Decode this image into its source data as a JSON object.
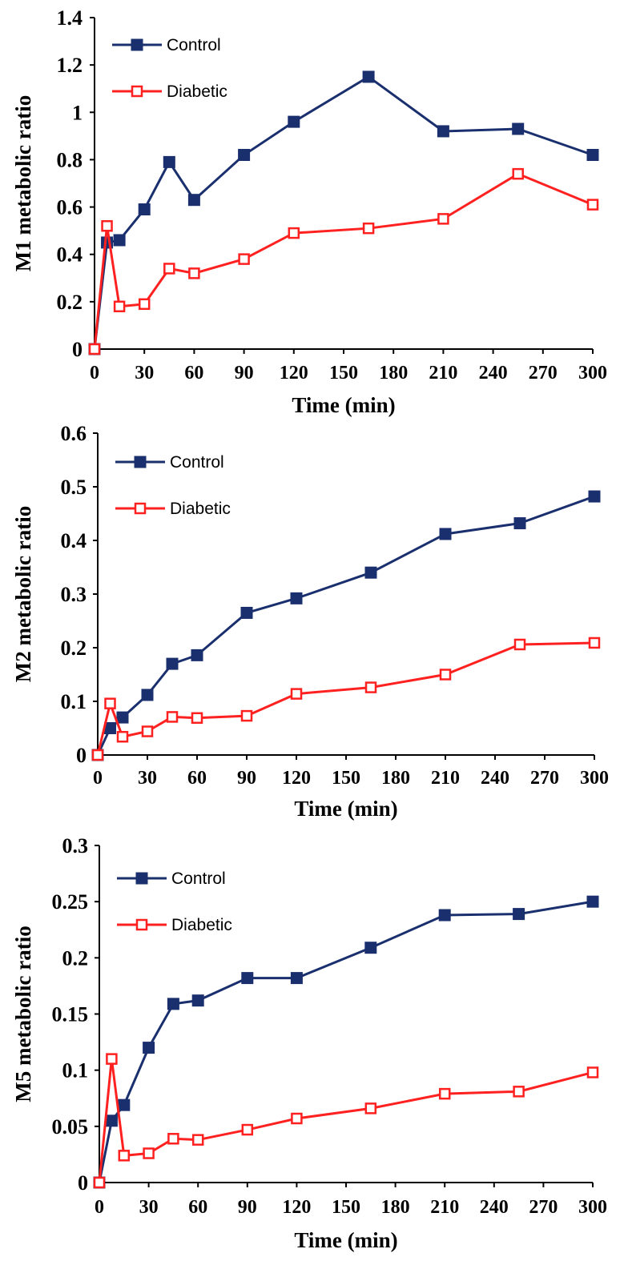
{
  "colors": {
    "control": "#1a2f6e",
    "diabetic": "#ff2020",
    "axis": "#000000"
  },
  "chart_data": [
    {
      "type": "line",
      "xlabel": "Time (min)",
      "ylabel": "M1 metabolic ratio",
      "xlim": [
        0,
        300
      ],
      "ylim": [
        0,
        1.4
      ],
      "xticks": [
        0,
        30,
        60,
        90,
        120,
        150,
        180,
        210,
        240,
        270,
        300
      ],
      "yticks": [
        "0",
        "0.2",
        "0.4",
        "0.6",
        "0.8",
        "1",
        "1.2",
        "1.4"
      ],
      "legend_position": "top-left",
      "grid": false,
      "series": [
        {
          "name": "Control",
          "marker": "filled-square",
          "x": [
            0,
            7.5,
            15,
            30,
            45,
            60,
            90,
            120,
            165,
            210,
            255,
            300
          ],
          "y": [
            0,
            0.45,
            0.46,
            0.59,
            0.79,
            0.63,
            0.82,
            0.96,
            1.15,
            0.92,
            0.93,
            0.82
          ]
        },
        {
          "name": "Diabetic",
          "marker": "open-square",
          "x": [
            0,
            7.5,
            15,
            30,
            45,
            60,
            90,
            120,
            165,
            210,
            255,
            300
          ],
          "y": [
            0,
            0.52,
            0.18,
            0.19,
            0.34,
            0.32,
            0.38,
            0.49,
            0.51,
            0.55,
            0.74,
            0.61
          ]
        }
      ]
    },
    {
      "type": "line",
      "xlabel": "Time (min)",
      "ylabel": "M2 metabolic ratio",
      "xlim": [
        0,
        300
      ],
      "ylim": [
        0,
        0.6
      ],
      "xticks": [
        0,
        30,
        60,
        90,
        120,
        150,
        180,
        210,
        240,
        270,
        300
      ],
      "yticks": [
        "0",
        "0.1",
        "0.2",
        "0.3",
        "0.4",
        "0.5",
        "0.6"
      ],
      "legend_position": "top-left",
      "grid": false,
      "series": [
        {
          "name": "Control",
          "marker": "filled-square",
          "x": [
            0,
            7.5,
            15,
            30,
            45,
            60,
            90,
            120,
            165,
            210,
            255,
            300
          ],
          "y": [
            0,
            0.05,
            0.07,
            0.112,
            0.17,
            0.186,
            0.265,
            0.292,
            0.34,
            0.412,
            0.432,
            0.482
          ]
        },
        {
          "name": "Diabetic",
          "marker": "open-square",
          "x": [
            0,
            7.5,
            15,
            30,
            45,
            60,
            90,
            120,
            165,
            210,
            255,
            300
          ],
          "y": [
            0,
            0.096,
            0.034,
            0.044,
            0.071,
            0.069,
            0.073,
            0.114,
            0.126,
            0.15,
            0.206,
            0.209
          ]
        }
      ]
    },
    {
      "type": "line",
      "xlabel": "Time (min)",
      "ylabel": "M5 metabolic ratio",
      "xlim": [
        0,
        300
      ],
      "ylim": [
        0,
        0.3
      ],
      "xticks": [
        0,
        30,
        60,
        90,
        120,
        150,
        180,
        210,
        240,
        270,
        300
      ],
      "yticks": [
        "0",
        "0.05",
        "0.1",
        "0.15",
        "0.2",
        "0.25",
        "0.3"
      ],
      "legend_position": "top-left",
      "grid": false,
      "series": [
        {
          "name": "Control",
          "marker": "filled-square",
          "x": [
            0,
            7.5,
            15,
            30,
            45,
            60,
            90,
            120,
            165,
            210,
            255,
            300
          ],
          "y": [
            0,
            0.055,
            0.069,
            0.12,
            0.159,
            0.162,
            0.182,
            0.182,
            0.209,
            0.238,
            0.239,
            0.25
          ]
        },
        {
          "name": "Diabetic",
          "marker": "open-square",
          "x": [
            0,
            7.5,
            15,
            30,
            45,
            60,
            90,
            120,
            165,
            210,
            255,
            300
          ],
          "y": [
            0,
            0.11,
            0.024,
            0.026,
            0.039,
            0.038,
            0.047,
            0.057,
            0.066,
            0.079,
            0.081,
            0.098
          ]
        }
      ]
    }
  ]
}
